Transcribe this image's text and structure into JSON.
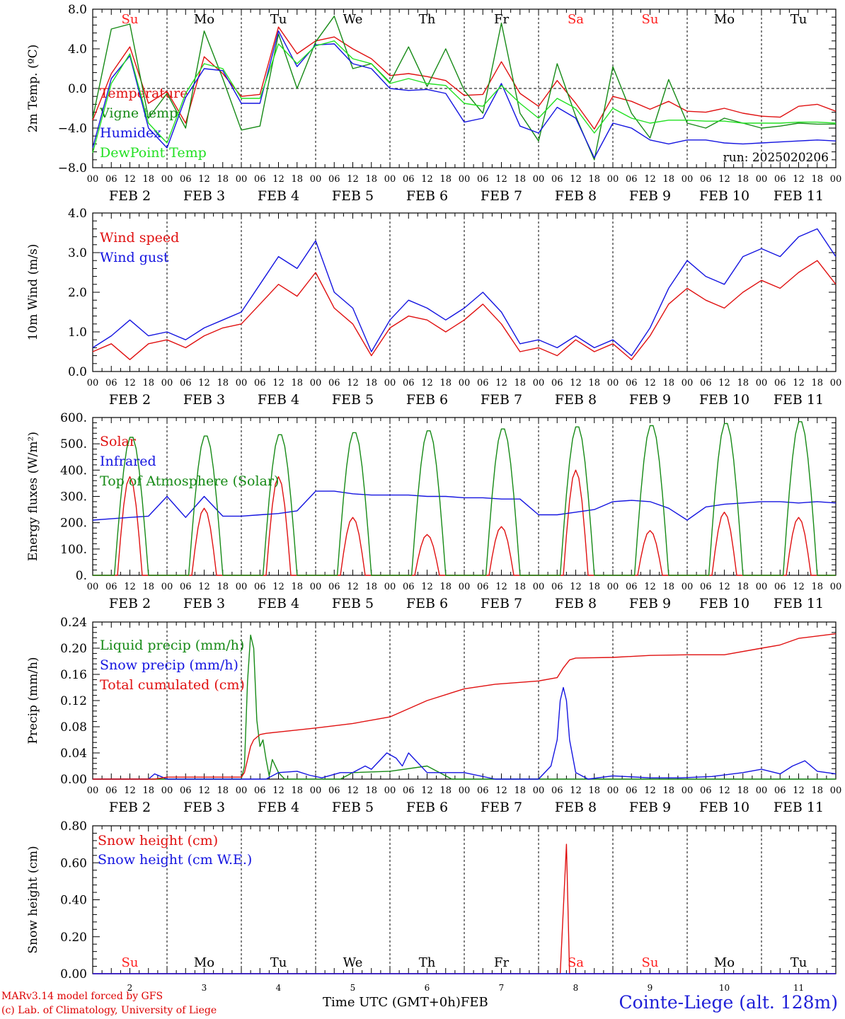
{
  "colors": {
    "red": "#e01010",
    "green": "#168a16",
    "blue": "#1414e0",
    "lightgreen": "#22e022",
    "weekend": "#ff2020",
    "axis": "#000000"
  },
  "run_label": "run: 2025020206",
  "hour_ticks": [
    "00",
    "06",
    "12",
    "18"
  ],
  "date_labels": [
    "FEB  2",
    "FEB  3",
    "FEB  4",
    "FEB  5",
    "FEB  6",
    "FEB  7",
    "FEB  8",
    "FEB  9",
    "FEB 10",
    "FEB 11"
  ],
  "day_names": [
    "Su",
    "Mo",
    "Tu",
    "We",
    "Th",
    "Fr",
    "Sa",
    "Su",
    "Mo",
    "Tu"
  ],
  "weekend_days": [
    0,
    6,
    7
  ],
  "day_numbers": [
    "2",
    "3",
    "4",
    "5",
    "6",
    "7",
    "8",
    "9",
    "10",
    "11"
  ],
  "chart_data": [
    {
      "type": "line",
      "ylabel": "2m Temp. (ºC)",
      "ylim": [
        -8,
        8
      ],
      "yticks": [
        "8.0",
        "4.0",
        "0.0",
        "−4.0",
        "−8.0"
      ],
      "ytick_values": [
        8,
        4,
        0,
        -4,
        -8
      ],
      "zero_line": true,
      "x_hours": [
        0,
        6,
        12,
        18,
        24,
        30,
        36,
        42,
        48,
        54,
        60,
        66,
        72,
        78,
        84,
        90,
        96,
        102,
        108,
        114,
        120,
        126,
        132,
        138,
        144,
        150,
        156,
        162,
        168,
        174,
        180,
        186,
        192,
        198,
        204,
        210,
        216,
        222,
        228,
        234,
        240
      ],
      "series": [
        {
          "name": "Temperature",
          "color": "red",
          "values": [
            -3.2,
            1.5,
            4.2,
            -1.5,
            -0.3,
            -3.5,
            3.2,
            1.5,
            -0.8,
            -0.6,
            6.2,
            3.5,
            4.8,
            5.2,
            4.0,
            3.0,
            1.3,
            1.5,
            1.2,
            0.8,
            -0.7,
            -0.6,
            2.7,
            -0.5,
            -1.8,
            0.8,
            -1.5,
            -4.1,
            -0.8,
            -1.3,
            -2.1,
            -1.3,
            -2.3,
            -2.4,
            -2.0,
            -2.5,
            -2.8,
            -2.9,
            -1.8,
            -1.6,
            -2.3
          ]
        },
        {
          "name": "Vigne temp",
          "color": "green",
          "values": [
            -3.0,
            6.0,
            6.5,
            -3.0,
            -0.5,
            -4.0,
            5.8,
            1.0,
            -4.2,
            -3.8,
            5.5,
            0.0,
            4.7,
            7.3,
            2.0,
            2.5,
            0.6,
            4.2,
            0.2,
            4.0,
            -0.2,
            -2.5,
            6.6,
            -2.5,
            -5.3,
            2.5,
            -2.8,
            -7.2,
            2.2,
            -2.5,
            -5.0,
            0.9,
            -3.5,
            -4.0,
            -3.0,
            -3.5,
            -4.0,
            -3.8,
            -3.5,
            -3.6,
            -3.6
          ]
        },
        {
          "name": "Humidex",
          "color": "blue",
          "values": [
            -6.0,
            1.0,
            3.3,
            -4.0,
            -6.0,
            -0.9,
            2.0,
            1.8,
            -1.5,
            -1.5,
            5.8,
            2.2,
            4.4,
            4.5,
            2.5,
            2.0,
            0.0,
            -0.2,
            -0.1,
            -0.5,
            -3.4,
            -3.0,
            0.5,
            -3.8,
            -4.5,
            -1.9,
            -3.0,
            -7.0,
            -3.5,
            -4.0,
            -5.2,
            -5.6,
            -5.2,
            -5.2,
            -5.5,
            -5.6,
            -5.5,
            -5.4,
            -5.3,
            -5.2,
            -5.3
          ]
        },
        {
          "name": "DewPoint Temp",
          "color": "lightgreen",
          "values": [
            -6.5,
            0.5,
            3.5,
            -3.5,
            -5.5,
            -0.5,
            2.5,
            2.0,
            -1.0,
            -1.0,
            4.5,
            2.5,
            4.3,
            4.8,
            3.0,
            2.5,
            0.5,
            1.0,
            0.5,
            0.3,
            -1.5,
            -1.8,
            0.3,
            -1.5,
            -3.0,
            -1.0,
            -2.0,
            -4.5,
            -2.0,
            -3.0,
            -3.5,
            -3.2,
            -3.2,
            -3.3,
            -3.3,
            -3.5,
            -3.5,
            -3.5,
            -3.4,
            -3.4,
            -3.5
          ]
        }
      ]
    },
    {
      "type": "line",
      "ylabel": "10m Wind (m/s)",
      "ylim": [
        0,
        4
      ],
      "yticks": [
        "4.0",
        "3.0",
        "2.0",
        "1.0",
        "0.0"
      ],
      "ytick_values": [
        4,
        3,
        2,
        1,
        0
      ],
      "x_hours": [
        0,
        6,
        12,
        18,
        24,
        30,
        36,
        42,
        48,
        54,
        60,
        66,
        72,
        78,
        84,
        90,
        96,
        102,
        108,
        114,
        120,
        126,
        132,
        138,
        144,
        150,
        156,
        162,
        168,
        174,
        180,
        186,
        192,
        198,
        204,
        210,
        216,
        222,
        228,
        234,
        240
      ],
      "series": [
        {
          "name": "Wind speed",
          "color": "red",
          "values": [
            0.5,
            0.7,
            0.3,
            0.7,
            0.8,
            0.6,
            0.9,
            1.1,
            1.2,
            1.7,
            2.2,
            1.9,
            2.5,
            1.6,
            1.2,
            0.4,
            1.1,
            1.4,
            1.3,
            1.0,
            1.3,
            1.7,
            1.2,
            0.5,
            0.6,
            0.4,
            0.8,
            0.5,
            0.7,
            0.3,
            0.9,
            1.7,
            2.1,
            1.8,
            1.6,
            2.0,
            2.3,
            2.1,
            2.5,
            2.8,
            2.2
          ]
        },
        {
          "name": "Wind gust",
          "color": "blue",
          "values": [
            0.6,
            0.9,
            1.3,
            0.9,
            1.0,
            0.8,
            1.1,
            1.3,
            1.5,
            2.2,
            2.9,
            2.6,
            3.3,
            2.0,
            1.6,
            0.5,
            1.3,
            1.8,
            1.6,
            1.3,
            1.6,
            2.0,
            1.5,
            0.7,
            0.8,
            0.6,
            0.9,
            0.6,
            0.8,
            0.4,
            1.1,
            2.1,
            2.8,
            2.4,
            2.2,
            2.9,
            3.1,
            2.9,
            3.4,
            3.6,
            2.9
          ]
        }
      ]
    },
    {
      "type": "line",
      "ylabel": "Energy fluxes (W/m²)",
      "ylim": [
        0,
        600
      ],
      "yticks": [
        "600.",
        "500.",
        "400.",
        "300.",
        "200.",
        "100.",
        "0."
      ],
      "ytick_values": [
        600,
        500,
        400,
        300,
        200,
        100,
        0
      ],
      "infrared_x_hours": [
        0,
        6,
        12,
        18,
        24,
        30,
        36,
        42,
        48,
        54,
        60,
        66,
        72,
        78,
        84,
        90,
        96,
        102,
        108,
        114,
        120,
        126,
        132,
        138,
        144,
        150,
        156,
        162,
        168,
        174,
        180,
        186,
        192,
        198,
        204,
        210,
        216,
        222,
        228,
        234,
        240
      ],
      "series": [
        {
          "name": "Solar",
          "color": "red",
          "day_peaks": [
            375,
            255,
            375,
            220,
            155,
            185,
            400,
            170,
            240,
            220
          ]
        },
        {
          "name": "Infrared",
          "color": "blue",
          "values": [
            210,
            215,
            220,
            225,
            300,
            220,
            300,
            225,
            225,
            230,
            235,
            245,
            320,
            320,
            310,
            305,
            305,
            305,
            300,
            300,
            295,
            295,
            290,
            290,
            230,
            230,
            240,
            250,
            280,
            285,
            280,
            255,
            210,
            260,
            270,
            275,
            280,
            280,
            275,
            280,
            275
          ]
        },
        {
          "name": "Top of Atmosphere (Solar)",
          "color": "green",
          "day_peaks": [
            530,
            535,
            540,
            548,
            555,
            562,
            570,
            575,
            583,
            590
          ]
        }
      ]
    },
    {
      "type": "line",
      "ylabel": "Precip (mm/h)",
      "ylim": [
        0,
        0.24
      ],
      "yticks": [
        "0.24",
        "0.20",
        "0.16",
        "0.12",
        "0.08",
        "0.04",
        "0.00"
      ],
      "ytick_values": [
        0.24,
        0.2,
        0.16,
        0.12,
        0.08,
        0.04,
        0.0
      ],
      "series": [
        {
          "name": "Liquid precip (mm/h)",
          "color": "green",
          "x_hours": [
            0,
            48,
            49,
            50,
            51,
            52,
            53,
            54,
            55,
            56,
            57,
            58,
            60,
            62,
            64,
            70,
            80,
            84,
            96,
            108,
            112,
            116,
            120,
            240
          ],
          "values": [
            0,
            0,
            0.02,
            0.15,
            0.22,
            0.2,
            0.09,
            0.05,
            0.06,
            0.03,
            0.005,
            0.03,
            0.01,
            0,
            0,
            0,
            0,
            0.01,
            0.012,
            0.02,
            0.01,
            0,
            0,
            0
          ]
        },
        {
          "name": "Snow precip (mm/h)",
          "color": "blue",
          "x_hours": [
            0,
            18,
            20,
            22,
            24,
            48,
            56,
            60,
            66,
            70,
            74,
            80,
            84,
            88,
            90,
            92,
            95,
            98,
            100,
            102,
            108,
            112,
            120,
            130,
            138,
            144,
            148,
            150,
            151,
            152,
            153,
            154,
            156,
            160,
            168,
            180,
            190,
            200,
            210,
            216,
            222,
            226,
            230,
            234,
            240
          ],
          "values": [
            0,
            0,
            0.008,
            0.004,
            0,
            0,
            0,
            0.01,
            0.012,
            0.006,
            0.002,
            0.01,
            0.01,
            0.02,
            0.015,
            0.025,
            0.04,
            0.032,
            0.02,
            0.04,
            0.01,
            0.01,
            0.01,
            0,
            0,
            0,
            0.02,
            0.06,
            0.12,
            0.14,
            0.12,
            0.06,
            0.01,
            0,
            0.005,
            0.002,
            0.002,
            0.004,
            0.01,
            0.015,
            0.008,
            0.02,
            0.028,
            0.012,
            0.008
          ]
        },
        {
          "name": "Total cumulated (cm)",
          "color": "red",
          "x_hours": [
            0,
            20,
            24,
            48,
            49,
            50,
            51,
            52,
            54,
            56,
            60,
            72,
            84,
            96,
            108,
            120,
            130,
            144,
            150,
            152,
            154,
            156,
            168,
            180,
            192,
            204,
            216,
            222,
            228,
            240
          ],
          "values": [
            0,
            0,
            0.003,
            0.003,
            0.01,
            0.03,
            0.05,
            0.06,
            0.068,
            0.07,
            0.072,
            0.078,
            0.085,
            0.095,
            0.12,
            0.138,
            0.145,
            0.15,
            0.155,
            0.17,
            0.182,
            0.185,
            0.186,
            0.189,
            0.19,
            0.19,
            0.2,
            0.205,
            0.215,
            0.222
          ]
        }
      ]
    },
    {
      "type": "line",
      "ylabel": "Snow height (cm)",
      "ylim": [
        0,
        0.8
      ],
      "yticks": [
        "0.80",
        "0.60",
        "0.40",
        "0.20",
        "0.00"
      ],
      "ytick_values": [
        0.8,
        0.6,
        0.4,
        0.2,
        0.0
      ],
      "series": [
        {
          "name": "Snow height (cm)",
          "color": "red",
          "x_hours": [
            0,
            151,
            152,
            153,
            154,
            240
          ],
          "values": [
            0,
            0,
            0.35,
            0.7,
            0,
            0
          ]
        },
        {
          "name": "Snow height (cm W.E.)",
          "color": "blue",
          "x_hours": [
            0,
            240
          ],
          "values": [
            0,
            0
          ]
        }
      ]
    }
  ],
  "footer": {
    "model": "MARv3.14 model forced by GFS",
    "copyright": "(c) Lab. of Climatology, University of Liege",
    "axis_title": "Time UTC (GMT+0h)",
    "month": "FEB",
    "station": "Cointe-Liege (alt. 128m)"
  }
}
